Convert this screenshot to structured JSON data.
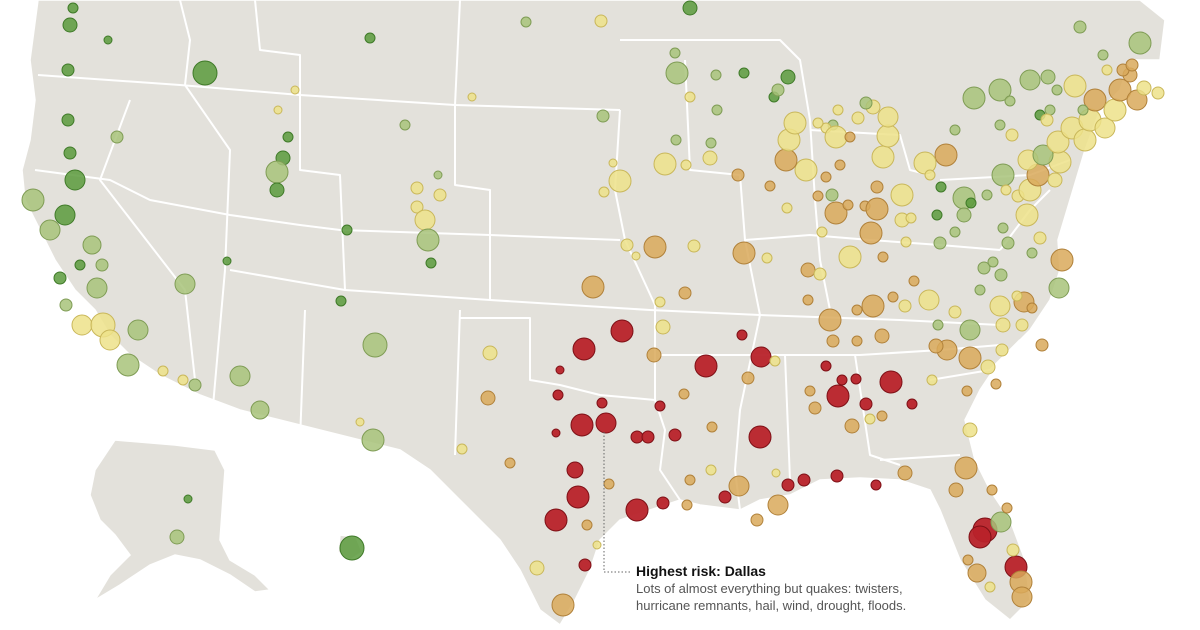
{
  "colors": {
    "background": "#ffffff",
    "land": "#e3e1db",
    "borders": "#ffffff",
    "risk_very_low": "#5a9a3c",
    "risk_low": "#a8c37a",
    "risk_medium": "#ede28a",
    "risk_high": "#d9a95a",
    "risk_highest": "#b8222a"
  },
  "annotation": {
    "title": "Highest risk: Dallas",
    "body_line1": "Lots of almost everything but quakes: twisters,",
    "body_line2": "hurricane remnants, hail, wind, drought, floods."
  },
  "map": {
    "region": "United States counties and cities (contiguous US, Alaska, Hawaii)",
    "symbol": "circle",
    "highlighted_city": "Dallas"
  }
}
